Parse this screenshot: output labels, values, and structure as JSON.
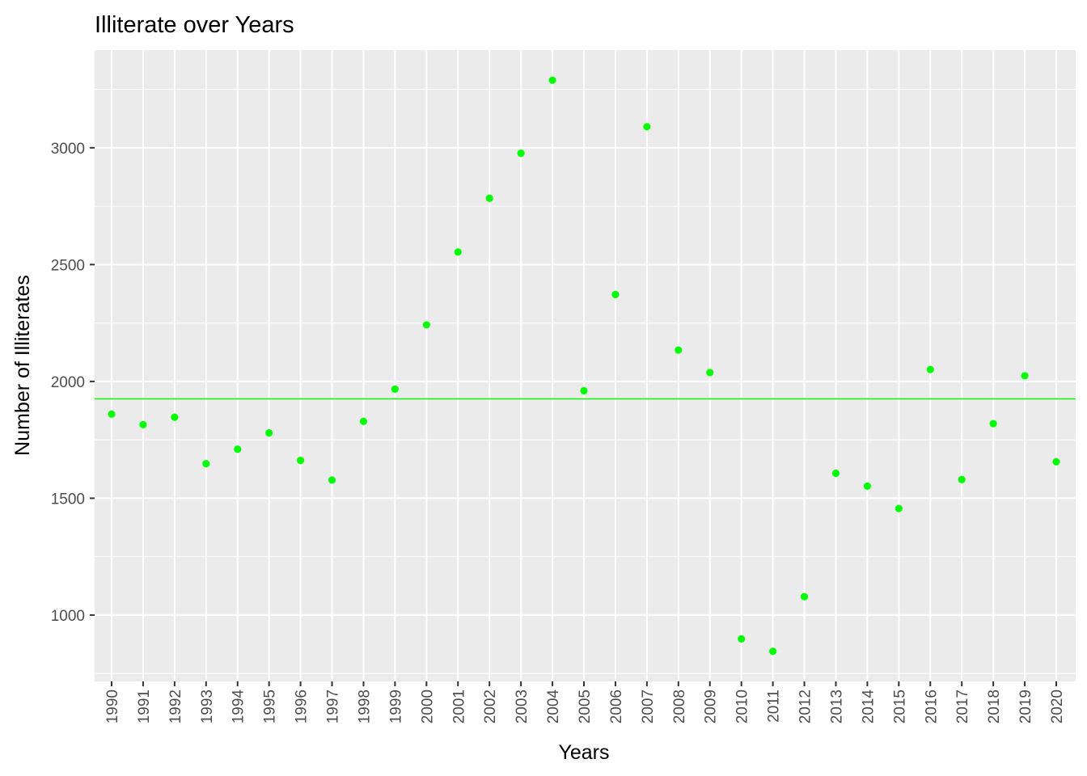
{
  "chart_data": {
    "type": "scatter",
    "title": "Illiterate over Years",
    "xlabel": "Years",
    "ylabel": "Number of Illiterates",
    "x": [
      "1990",
      "1991",
      "1992",
      "1993",
      "1994",
      "1995",
      "1996",
      "1997",
      "1998",
      "1999",
      "2000",
      "2001",
      "2002",
      "2003",
      "2004",
      "2005",
      "2006",
      "2007",
      "2008",
      "2009",
      "2010",
      "2011",
      "2012",
      "2013",
      "2014",
      "2015",
      "2016",
      "2017",
      "2018",
      "2019",
      "2020"
    ],
    "y": [
      1860,
      1815,
      1847,
      1648,
      1710,
      1780,
      1662,
      1578,
      1829,
      1967,
      2242,
      2554,
      2784,
      2977,
      3289,
      1960,
      2372,
      3090,
      2134,
      2038,
      898,
      845,
      1079,
      1607,
      1552,
      1456,
      2051,
      1580,
      1819,
      2024,
      1656
    ],
    "hline": {
      "y": 1925,
      "color": "#00ff00"
    },
    "point_color": "#00ff00",
    "ylim": [
      716,
      3418
    ],
    "yticks": [
      1000,
      1500,
      2000,
      2500,
      3000
    ],
    "x_tick_rotation": "vertical",
    "grid": true,
    "panel_background": "#ebebeb",
    "grid_color": "#ffffff"
  }
}
